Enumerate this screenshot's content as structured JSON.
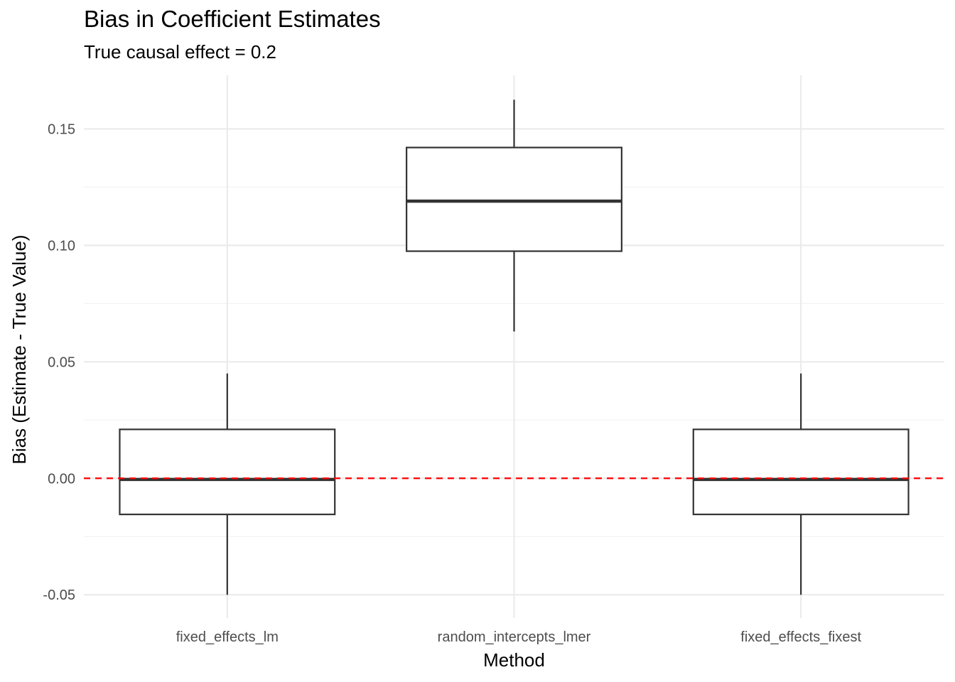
{
  "chart_data": {
    "type": "boxplot",
    "title": "Bias in Coefficient Estimates",
    "subtitle": "True causal effect = 0.2",
    "xlabel": "Method",
    "ylabel": "Bias (Estimate - True Value)",
    "categories": [
      "fixed_effects_lm",
      "random_intercepts_lmer",
      "fixed_effects_fixest"
    ],
    "boxes": [
      {
        "category": "fixed_effects_lm",
        "whisker_low": -0.05,
        "q1": -0.0155,
        "median": -0.0005,
        "q3": 0.021,
        "whisker_high": 0.045
      },
      {
        "category": "random_intercepts_lmer",
        "whisker_low": 0.063,
        "q1": 0.0975,
        "median": 0.119,
        "q3": 0.142,
        "whisker_high": 0.1625
      },
      {
        "category": "fixed_effects_fixest",
        "whisker_low": -0.05,
        "q1": -0.0155,
        "median": -0.0005,
        "q3": 0.021,
        "whisker_high": 0.045
      }
    ],
    "y_ticks": [
      -0.05,
      0.0,
      0.05,
      0.1,
      0.15
    ],
    "y_tick_labels": [
      "-0.05",
      "0.00",
      "0.05",
      "0.10",
      "0.15"
    ],
    "ylim": [
      -0.06,
      0.173
    ],
    "reference_line": {
      "y": 0,
      "style": "dashed",
      "color": "#ff0000"
    },
    "grid": true,
    "colors": {
      "box_stroke": "#333333",
      "grid_major": "#ebebeb",
      "grid_minor": "#f3f3f3",
      "tick_text": "#4d4d4d"
    }
  }
}
